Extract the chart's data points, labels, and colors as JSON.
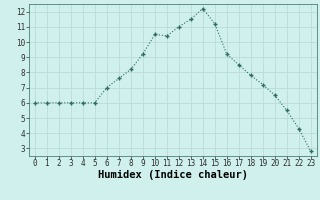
{
  "x": [
    0,
    1,
    2,
    3,
    4,
    5,
    6,
    7,
    8,
    9,
    10,
    11,
    12,
    13,
    14,
    15,
    16,
    17,
    18,
    19,
    20,
    21,
    22,
    23
  ],
  "y": [
    6.0,
    6.0,
    6.0,
    6.0,
    6.0,
    6.0,
    7.0,
    7.6,
    8.2,
    9.2,
    10.5,
    10.4,
    11.0,
    11.5,
    12.2,
    11.2,
    9.2,
    8.5,
    7.8,
    7.2,
    6.5,
    5.5,
    4.3,
    2.8
  ],
  "xlabel": "Humidex (Indice chaleur)",
  "ylim": [
    2.5,
    12.5
  ],
  "xlim": [
    -0.5,
    23.5
  ],
  "yticks": [
    3,
    4,
    5,
    6,
    7,
    8,
    9,
    10,
    11,
    12
  ],
  "xticks": [
    0,
    1,
    2,
    3,
    4,
    5,
    6,
    7,
    8,
    9,
    10,
    11,
    12,
    13,
    14,
    15,
    16,
    17,
    18,
    19,
    20,
    21,
    22,
    23
  ],
  "line_color": "#2d6b5e",
  "marker": "+",
  "background_color": "#cff0ec",
  "grid_color": "#b8d8d2",
  "tick_fontsize": 5.5,
  "label_fontsize": 7.5
}
